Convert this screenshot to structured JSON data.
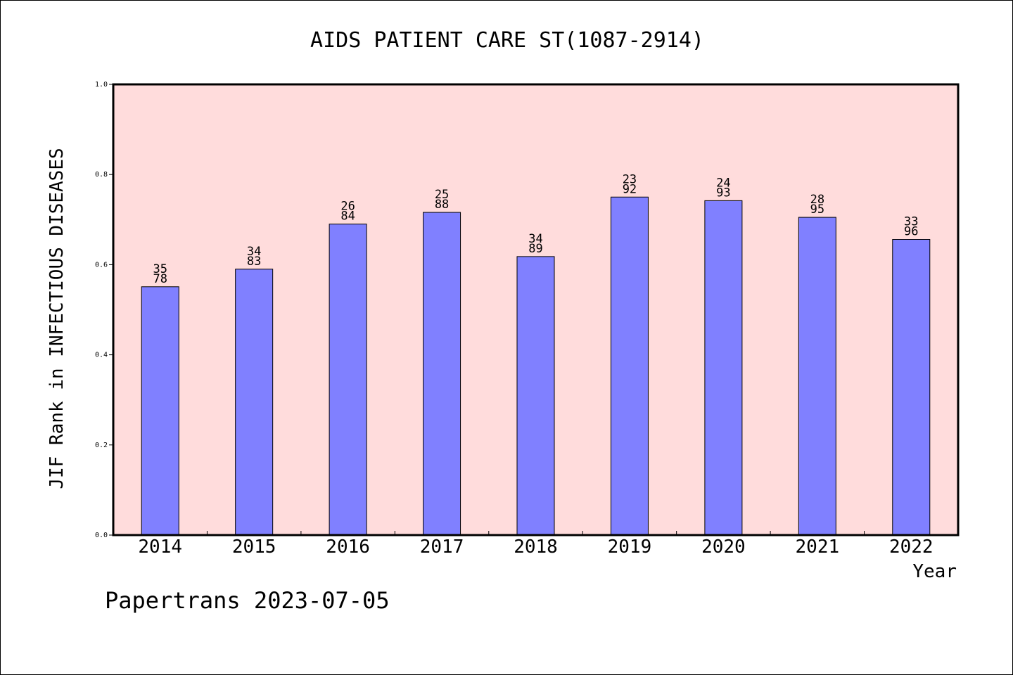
{
  "chart_data": {
    "type": "bar",
    "title": "AIDS PATIENT CARE ST(1087-2914)",
    "xlabel": "Year",
    "ylabel": "JIF Rank in INFECTIOUS DISEASES",
    "ylim": [
      0,
      1.0
    ],
    "yticks": [
      "0.0",
      "0.2",
      "0.4",
      "0.6",
      "0.8",
      "1.0"
    ],
    "grid": false,
    "categories": [
      "2014",
      "2015",
      "2016",
      "2017",
      "2018",
      "2019",
      "2020",
      "2021",
      "2022"
    ],
    "values": [
      0.551,
      0.59,
      0.69,
      0.716,
      0.618,
      0.75,
      0.742,
      0.705,
      0.656
    ],
    "rank_labels": [
      {
        "rank": "35",
        "total": "78"
      },
      {
        "rank": "34",
        "total": "83"
      },
      {
        "rank": "26",
        "total": "84"
      },
      {
        "rank": "25",
        "total": "88"
      },
      {
        "rank": "34",
        "total": "89"
      },
      {
        "rank": "23",
        "total": "92"
      },
      {
        "rank": "24",
        "total": "93"
      },
      {
        "rank": "28",
        "total": "95"
      },
      {
        "rank": "33",
        "total": "96"
      }
    ],
    "colors": {
      "plot_background": "#ffdcdc",
      "bar_fill": "#8080ff",
      "bar_stroke": "#000000"
    }
  },
  "footer": "Papertrans 2023-07-05"
}
